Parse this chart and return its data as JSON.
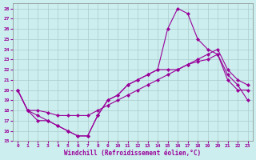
{
  "xlabel": "Windchill (Refroidissement éolien,°C)",
  "bg_color": "#cceeee",
  "grid_color": "#aacccc",
  "line_color": "#990099",
  "xlim": [
    -0.5,
    23.5
  ],
  "ylim": [
    15,
    28.5
  ],
  "xticks": [
    0,
    1,
    2,
    3,
    4,
    5,
    6,
    7,
    8,
    9,
    10,
    11,
    12,
    13,
    14,
    15,
    16,
    17,
    18,
    19,
    20,
    21,
    22,
    23
  ],
  "yticks": [
    15,
    16,
    17,
    18,
    19,
    20,
    21,
    22,
    23,
    24,
    25,
    26,
    27,
    28
  ],
  "hours": [
    0,
    1,
    2,
    3,
    4,
    5,
    6,
    7,
    8,
    9,
    10,
    11,
    12,
    13,
    14,
    15,
    16,
    17,
    18,
    19,
    20,
    21,
    22,
    23
  ],
  "curve1": [
    20,
    18,
    17.5,
    17,
    16.5,
    16.0,
    15.5,
    15.5,
    17.5,
    19.0,
    19.5,
    20.5,
    21.0,
    21.5,
    22.0,
    26.0,
    28.0,
    27.5,
    25.0,
    24.0,
    23.5,
    21.0,
    20.0,
    20.0
  ],
  "curve2": [
    20,
    18,
    18,
    17.8,
    17.5,
    17.5,
    17.5,
    17.5,
    18.0,
    18.5,
    19.0,
    19.5,
    20.0,
    20.5,
    21.0,
    21.5,
    22.0,
    22.5,
    23.0,
    23.5,
    24.0,
    22.0,
    21.0,
    20.5
  ],
  "curve3": [
    20,
    18,
    17,
    17,
    16.5,
    16.0,
    15.5,
    15.5,
    17.5,
    19.0,
    19.5,
    20.5,
    21.0,
    21.5,
    22.0,
    22.0,
    22.0,
    22.5,
    22.8,
    23.0,
    23.5,
    21.5,
    20.5,
    19.0
  ]
}
